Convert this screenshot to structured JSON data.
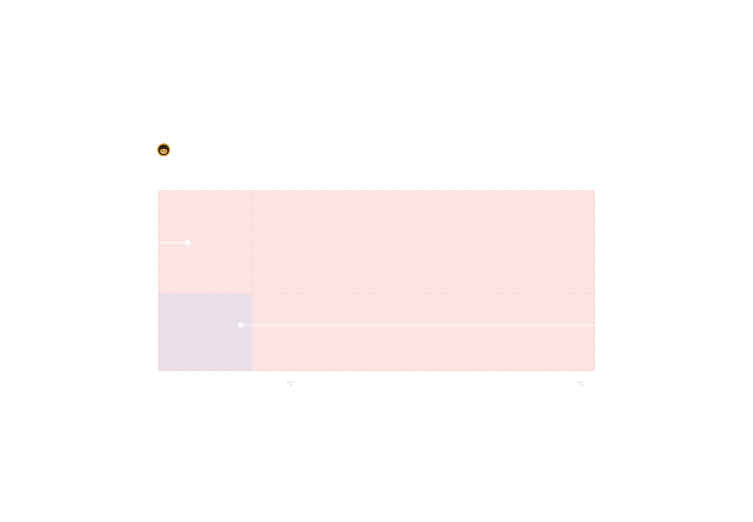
{
  "avatar": {
    "icon": "user-avatar-icon",
    "colors": {
      "ring": "#d99a1f",
      "hair": "#2b2216",
      "skin": "#e8b25c"
    }
  },
  "chart_data": {
    "type": "area",
    "title": "",
    "xlabel": "",
    "ylabel": "",
    "x_unit_labels": [
      "°C",
      "°C"
    ],
    "grid": true,
    "zones": [
      {
        "name": "",
        "color": "#fde4e3"
      },
      {
        "name": "",
        "color": "#e9e0ea"
      }
    ],
    "series": [
      {
        "points": [
          {
            "x": 0.0,
            "y": 0.71
          },
          {
            "x": 0.068,
            "y": 0.71
          }
        ]
      },
      {
        "points": [
          {
            "x": 0.19,
            "y": 0.255
          },
          {
            "x": 1.0,
            "y": 0.255
          }
        ]
      }
    ],
    "colors": {
      "marker": "#ffffff",
      "line": "#ffffff",
      "axis_label": "#c9c9c9"
    }
  }
}
